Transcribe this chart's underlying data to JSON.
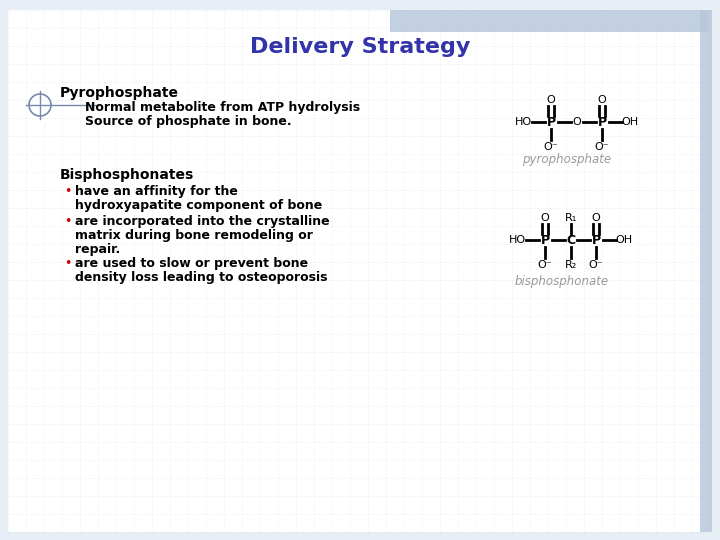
{
  "title": "Delivery Strategy",
  "title_color": "#3333AA",
  "title_fontsize": 16,
  "bg_color": "#e8eef5",
  "grid_color": "#c0cfe0",
  "section1_header": "Pyrophosphate",
  "section1_line1": "Normal metabolite from ATP hydrolysis",
  "section1_line2": "Source of phosphate in bone.",
  "section2_header": "Bisphosphonates",
  "bullet_color": "#cc0000",
  "text_color": "#000000",
  "label_pyrophosphate": "pyrophosphate",
  "label_bisphosphonate": "bisphosphonate",
  "label_color": "#999999",
  "top_bar_color": "#b8c8dc",
  "right_bar_color": "#b8c8dc",
  "text_fontsize": 9,
  "header_fontsize": 10
}
